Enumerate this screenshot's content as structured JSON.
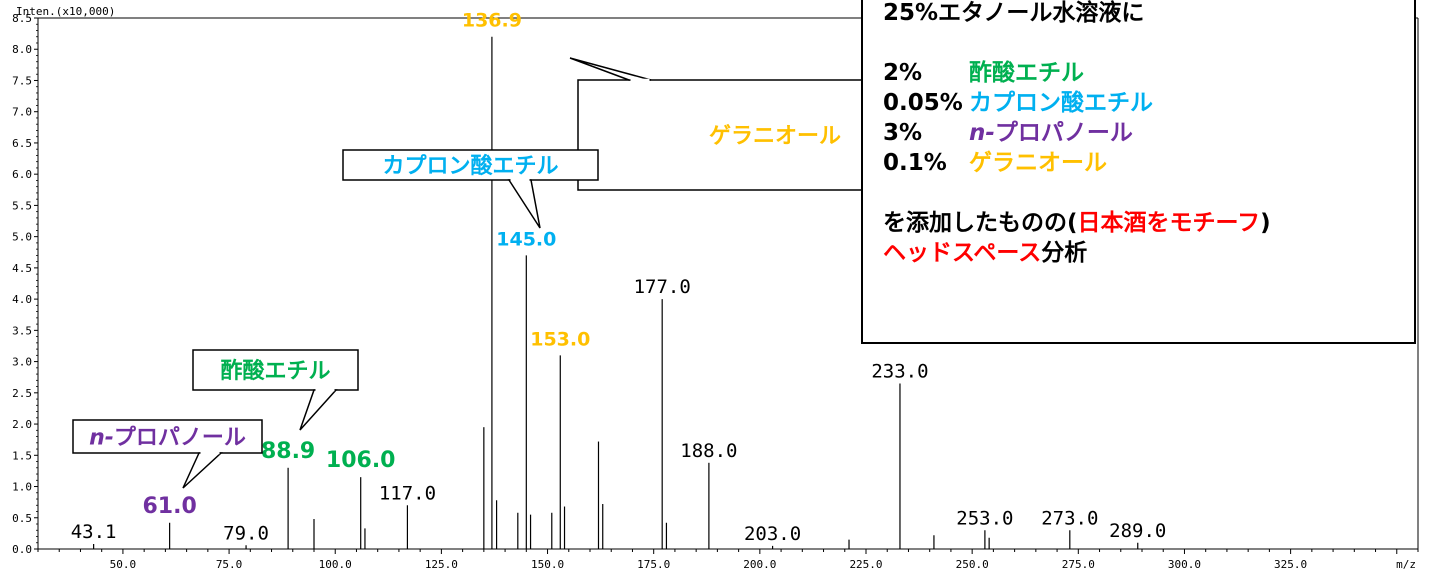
{
  "chart_data": {
    "type": "mass-spectrum",
    "ylabel": "Inten.(x10,000)",
    "xlabel": "m/z",
    "xlim": [
      30,
      355
    ],
    "ylim": [
      0,
      8.5
    ],
    "x_ticks": [
      50,
      75,
      100,
      125,
      150,
      175,
      200,
      225,
      250,
      275,
      300,
      325
    ],
    "x_tick_labels": [
      "50.0",
      "75.0",
      "100.0",
      "125.0",
      "150.0",
      "175.0",
      "200.0",
      "225.0",
      "250.0",
      "275.0",
      "300.0",
      "325.0"
    ],
    "y_ticks": [
      0,
      0.5,
      1.0,
      1.5,
      2.0,
      2.5,
      3.0,
      3.5,
      4.0,
      4.5,
      5.0,
      5.5,
      6.0,
      6.5,
      7.0,
      7.5,
      8.0,
      8.5
    ],
    "y_tick_labels": [
      "0.0",
      "0.5",
      "1.0",
      "1.5",
      "2.0",
      "2.5",
      "3.0",
      "3.5",
      "4.0",
      "4.5",
      "5.0",
      "5.5",
      "6.0",
      "6.5",
      "7.0",
      "7.5",
      "8.0",
      "8.5"
    ],
    "peaks": [
      {
        "x": 43.1,
        "y": 0.08,
        "label": "43.1"
      },
      {
        "x": 61.0,
        "y": 0.42,
        "label": "61.0",
        "color": "#7030a0",
        "bold": true
      },
      {
        "x": 79.0,
        "y": 0.06,
        "label": "79.0"
      },
      {
        "x": 88.9,
        "y": 1.3,
        "label": "88.9",
        "color": "#00b050",
        "bold": true
      },
      {
        "x": 95.0,
        "y": 0.48
      },
      {
        "x": 106.0,
        "y": 1.15,
        "label": "106.0",
        "color": "#00b050",
        "bold": true
      },
      {
        "x": 107.0,
        "y": 0.33
      },
      {
        "x": 117.0,
        "y": 0.7,
        "label": "117.0"
      },
      {
        "x": 135.0,
        "y": 1.95
      },
      {
        "x": 136.9,
        "y": 8.2,
        "label": "136.9",
        "color": "#ffc000",
        "bold": true
      },
      {
        "x": 138.0,
        "y": 0.78
      },
      {
        "x": 143.0,
        "y": 0.58
      },
      {
        "x": 145.0,
        "y": 4.7,
        "label": "145.0",
        "color": "#00b0f0",
        "bold": true
      },
      {
        "x": 146.0,
        "y": 0.55
      },
      {
        "x": 151.0,
        "y": 0.58
      },
      {
        "x": 153.0,
        "y": 3.1,
        "label": "153.0",
        "color": "#ffc000",
        "bold": true
      },
      {
        "x": 154.0,
        "y": 0.68
      },
      {
        "x": 162.0,
        "y": 1.72
      },
      {
        "x": 163.0,
        "y": 0.72
      },
      {
        "x": 177.0,
        "y": 4.0,
        "label": "177.0"
      },
      {
        "x": 178.0,
        "y": 0.42
      },
      {
        "x": 188.0,
        "y": 1.38,
        "label": "188.0"
      },
      {
        "x": 203.0,
        "y": 0.05,
        "label": "203.0"
      },
      {
        "x": 221.0,
        "y": 0.15
      },
      {
        "x": 233.0,
        "y": 2.65,
        "label": "233.0"
      },
      {
        "x": 241.0,
        "y": 0.22
      },
      {
        "x": 253.0,
        "y": 0.3,
        "label": "253.0"
      },
      {
        "x": 254.0,
        "y": 0.18
      },
      {
        "x": 273.0,
        "y": 0.3,
        "label": "273.0"
      },
      {
        "x": 289.0,
        "y": 0.1,
        "label": "289.0"
      }
    ],
    "annotations": [
      {
        "text": "ゲラニオール",
        "color": "#ffc000",
        "target": "136.9"
      },
      {
        "text": "カプロン酸エチル",
        "color": "#00b0f0",
        "target": "145.0"
      },
      {
        "text": "酢酸エチル",
        "color": "#00b050",
        "target": "88.9"
      },
      {
        "prefix": "n-",
        "text": "プロパノール",
        "color": "#7030a0",
        "target": "61.0"
      }
    ]
  },
  "info_box": {
    "line1": "25%エタノール水溶液に",
    "items": [
      {
        "pct": "2%",
        "prefix": "",
        "name": "酢酸エチル",
        "color": "#00b050"
      },
      {
        "pct": "0.05%",
        "prefix": "",
        "name": "カプロン酸エチル",
        "color": "#00b0f0"
      },
      {
        "pct": "3%",
        "prefix": "n-",
        "name": "プロパノール",
        "color": "#7030a0"
      },
      {
        "pct": "0.1%",
        "prefix": "",
        "name": "ゲラニオール",
        "color": "#ffc000"
      }
    ],
    "line_a1": "を添加したものの(",
    "line_a2": "日本酒をモチーフ",
    "line_a3": ")",
    "line_b1": "ヘッドスペース",
    "line_b2": "分析"
  }
}
